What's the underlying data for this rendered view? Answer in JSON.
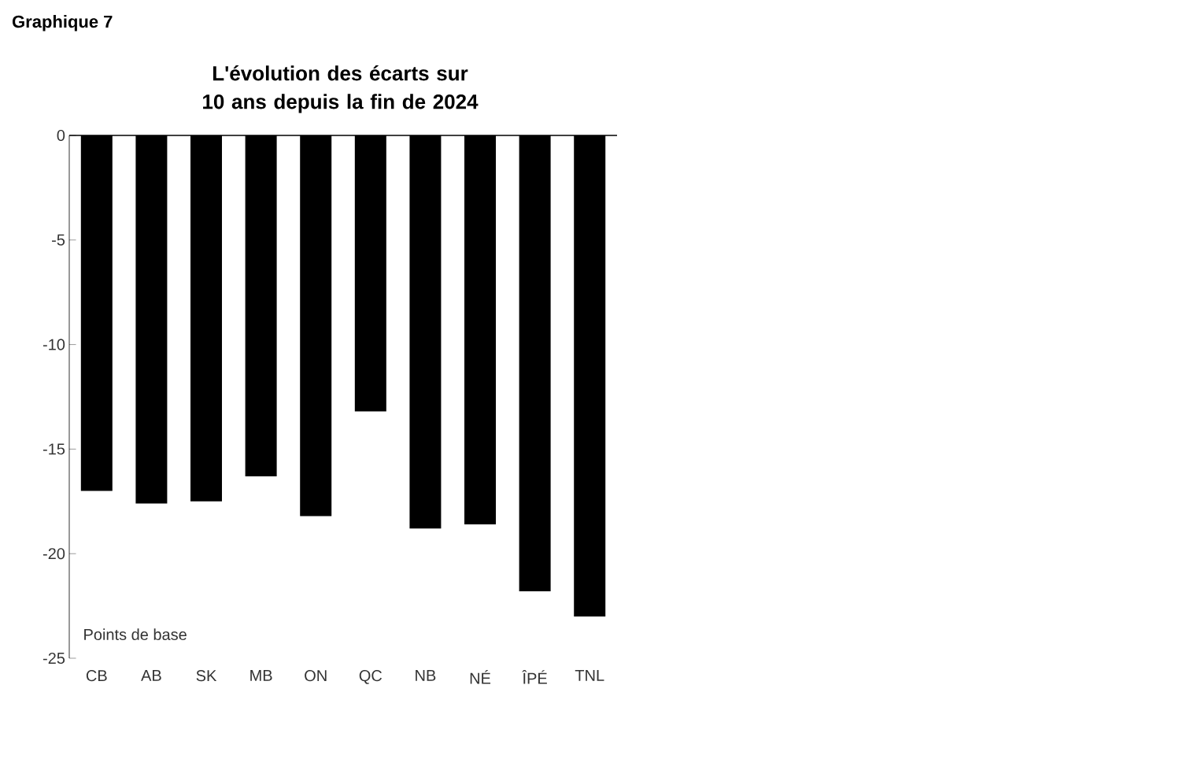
{
  "chart_data": {
    "type": "bar",
    "title": "L'évolution des écarts sur 10 ans depuis la fin de 2024",
    "ylabel": "Points de base",
    "annotations": [
      "Graphique 7"
    ],
    "categories": [
      "CB",
      "AB",
      "SK",
      "MB",
      "ON",
      "QC",
      "NB",
      "NÉ",
      "ÎPÉ",
      "TNL"
    ],
    "values": [
      -17.0,
      -17.6,
      -17.5,
      -16.3,
      -18.2,
      -13.2,
      -18.8,
      -18.6,
      -21.8,
      -23.0
    ],
    "color": "#000000",
    "ylim": [
      -25,
      0
    ],
    "yticks": [
      -25,
      -20,
      -15,
      -10,
      -5,
      0
    ],
    "grid": false
  }
}
